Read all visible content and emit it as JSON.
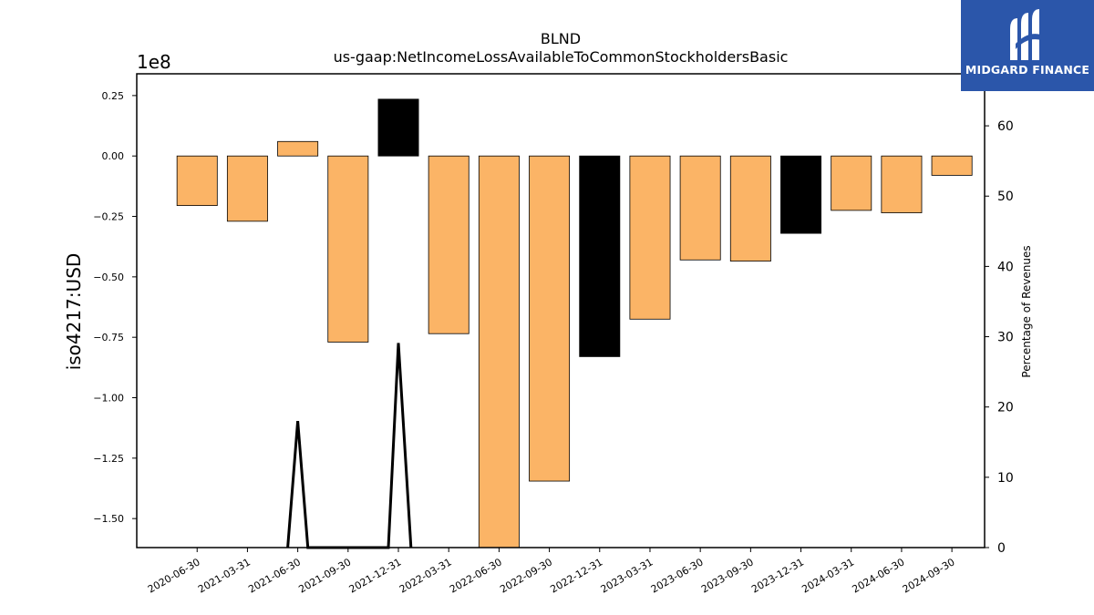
{
  "chart_data": {
    "type": "bar",
    "title": "BLND",
    "subtitle": "us-gaap:NetIncomeLossAvailableToCommonStockholdersBasic",
    "ylabel": "iso4217:USD",
    "y2label": "Percentage of Revenues",
    "y_offset_label": "1e8",
    "categories": [
      "2020-06-30",
      "2021-03-31",
      "2021-06-30",
      "2021-09-30",
      "2021-12-31",
      "2022-03-31",
      "2022-06-30",
      "2022-09-30",
      "2022-12-31",
      "2023-03-31",
      "2023-06-30",
      "2023-09-30",
      "2023-12-31",
      "2024-03-31",
      "2024-06-30",
      "2024-09-30"
    ],
    "values": [
      -20500000,
      -27000000,
      6000000,
      -77000000,
      23500000,
      -73500000,
      -163000000,
      -134500000,
      -83000000,
      -67500000,
      -43000000,
      -43500000,
      -32000000,
      -22500000,
      -23500000,
      -8000000
    ],
    "bar_colors": [
      "#fbb466",
      "#fbb466",
      "#fbb466",
      "#fbb466",
      "#000000",
      "#fbb466",
      "#fbb466",
      "#fbb466",
      "#000000",
      "#fbb466",
      "#fbb466",
      "#fbb466",
      "#000000",
      "#fbb466",
      "#fbb466",
      "#fbb466"
    ],
    "ylim": [
      -162000000,
      34000000
    ],
    "yticks": [
      0.25,
      0.0,
      -0.25,
      -0.5,
      -0.75,
      -1.0,
      -1.25,
      -1.5
    ],
    "ytick_labels": [
      "0.25",
      "0.00",
      "−0.25",
      "−0.50",
      "−0.75",
      "−1.00",
      "−1.25",
      "−1.50"
    ],
    "y2lim": [
      0,
      67.4
    ],
    "y2ticks": [
      0,
      10,
      20,
      30,
      40,
      50,
      60
    ],
    "y2tick_labels": [
      "0",
      "10",
      "20",
      "30",
      "40",
      "50",
      "60"
    ],
    "percent_line": [
      {
        "x": 1.8,
        "y": 0
      },
      {
        "x": 2.0,
        "y": 18
      },
      {
        "x": 2.2,
        "y": 0
      },
      {
        "x": 3.8,
        "y": 0
      },
      {
        "x": 4.0,
        "y": 29.1
      },
      {
        "x": 4.25,
        "y": 0
      }
    ],
    "colors": {
      "positive_bar": "#fbb466",
      "highlight_bar": "#000000",
      "line": "#000000"
    },
    "grid": false
  },
  "logo": {
    "text": "MIDGARD FINANCE",
    "background": "#2b56aa"
  }
}
